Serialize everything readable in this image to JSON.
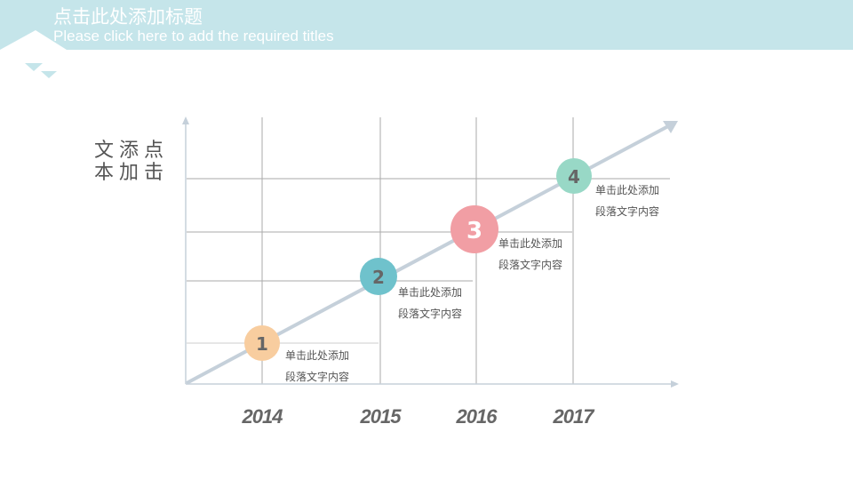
{
  "header": {
    "title": "点击此处添加标题",
    "subtitle": "Please click here to add the required titles",
    "band_color": "#c5e5ea"
  },
  "side_label": {
    "lines": [
      "文添点",
      "本加击"
    ]
  },
  "timeline": {
    "years": [
      "2014",
      "2015",
      "2016",
      "2017"
    ],
    "milestones": [
      {
        "number": "1",
        "color": "#f8cd9f",
        "note_line1": "单击此处添加",
        "note_line2": "段落文字内容"
      },
      {
        "number": "2",
        "color": "#6fc2cc",
        "note_line1": "单击此处添加",
        "note_line2": "段落文字内容"
      },
      {
        "number": "3",
        "color": "#f19ea4",
        "note_line1": "单击此处添加",
        "note_line2": "段落文字内容"
      },
      {
        "number": "4",
        "color": "#98d8c6",
        "note_line1": "单击此处添加",
        "note_line2": "段落文字内容"
      }
    ]
  }
}
